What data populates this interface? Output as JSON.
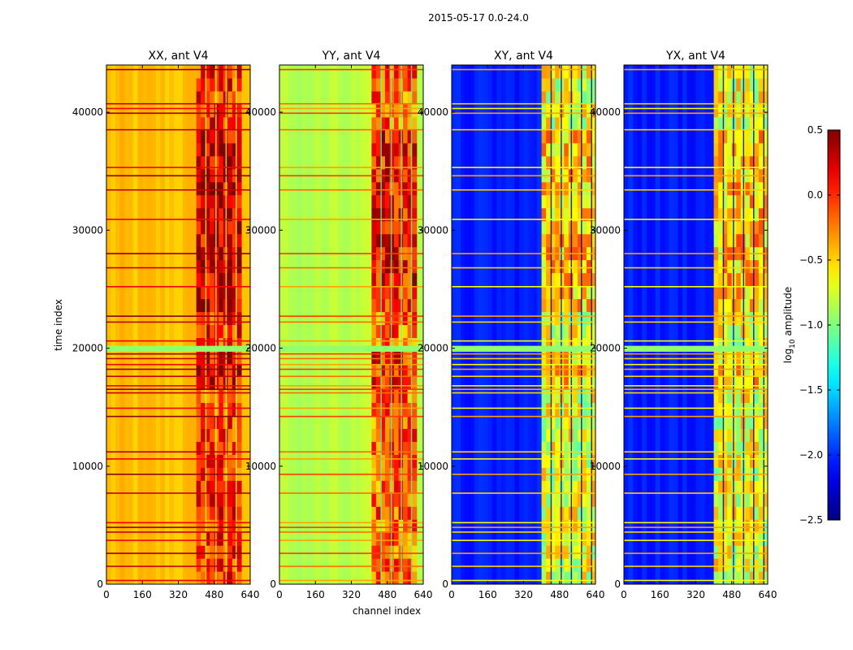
{
  "chart_data": {
    "type": "heatmap",
    "suptitle": "2015-05-17 0.0-24.0",
    "xlabel": "channel index",
    "ylabel": "time index",
    "xlim": [
      0,
      640
    ],
    "ylim": [
      0,
      44000
    ],
    "x_ticks": [
      0,
      160,
      320,
      480,
      640
    ],
    "y_ticks": [
      0,
      10000,
      20000,
      30000,
      40000
    ],
    "panels": [
      {
        "title": "XX, ant V4",
        "base": -0.45,
        "band_start": 400,
        "band_end": 600,
        "band_level": 0.0,
        "stripe_shift": 0.6
      },
      {
        "title": "YY, ant V4",
        "base": -0.85,
        "band_start": 410,
        "band_end": 600,
        "band_level": -0.15,
        "stripe_shift": 0.5
      },
      {
        "title": "XY, ant V4",
        "base": -2.05,
        "band_start": 400,
        "band_end": 640,
        "band_level": -0.7,
        "stripe_shift": 1.4
      },
      {
        "title": "YX, ant V4",
        "base": -2.05,
        "band_start": 400,
        "band_end": 640,
        "band_level": -0.7,
        "stripe_shift": 1.4
      }
    ],
    "colorbar": {
      "label": "log10 amplitude",
      "label_main": "log",
      "label_sub": "10",
      "label_rest": " amplitude",
      "colormap": "jet",
      "vmin": -2.5,
      "vmax": 0.5,
      "ticks": [
        0.5,
        0.0,
        -0.5,
        -1.0,
        -1.5,
        -2.0,
        -2.5
      ],
      "tick_labels": [
        "0.5",
        "0.0",
        "−0.5",
        "−1.0",
        "−1.5",
        "−2.0",
        "−2.5"
      ]
    },
    "flagged_time_rows": [
      300,
      1500,
      2600,
      3700,
      4400,
      4800,
      5200,
      7700,
      9300,
      10600,
      11200,
      14200,
      14900,
      16200,
      16500,
      16800,
      17600,
      18200,
      18600,
      19100,
      19500,
      20600,
      22200,
      22700,
      25200,
      26800,
      28000,
      30900,
      33400,
      34600,
      35300,
      38500,
      39900,
      40300,
      40700,
      43600
    ],
    "gap_time_range": [
      19700,
      20200
    ]
  }
}
